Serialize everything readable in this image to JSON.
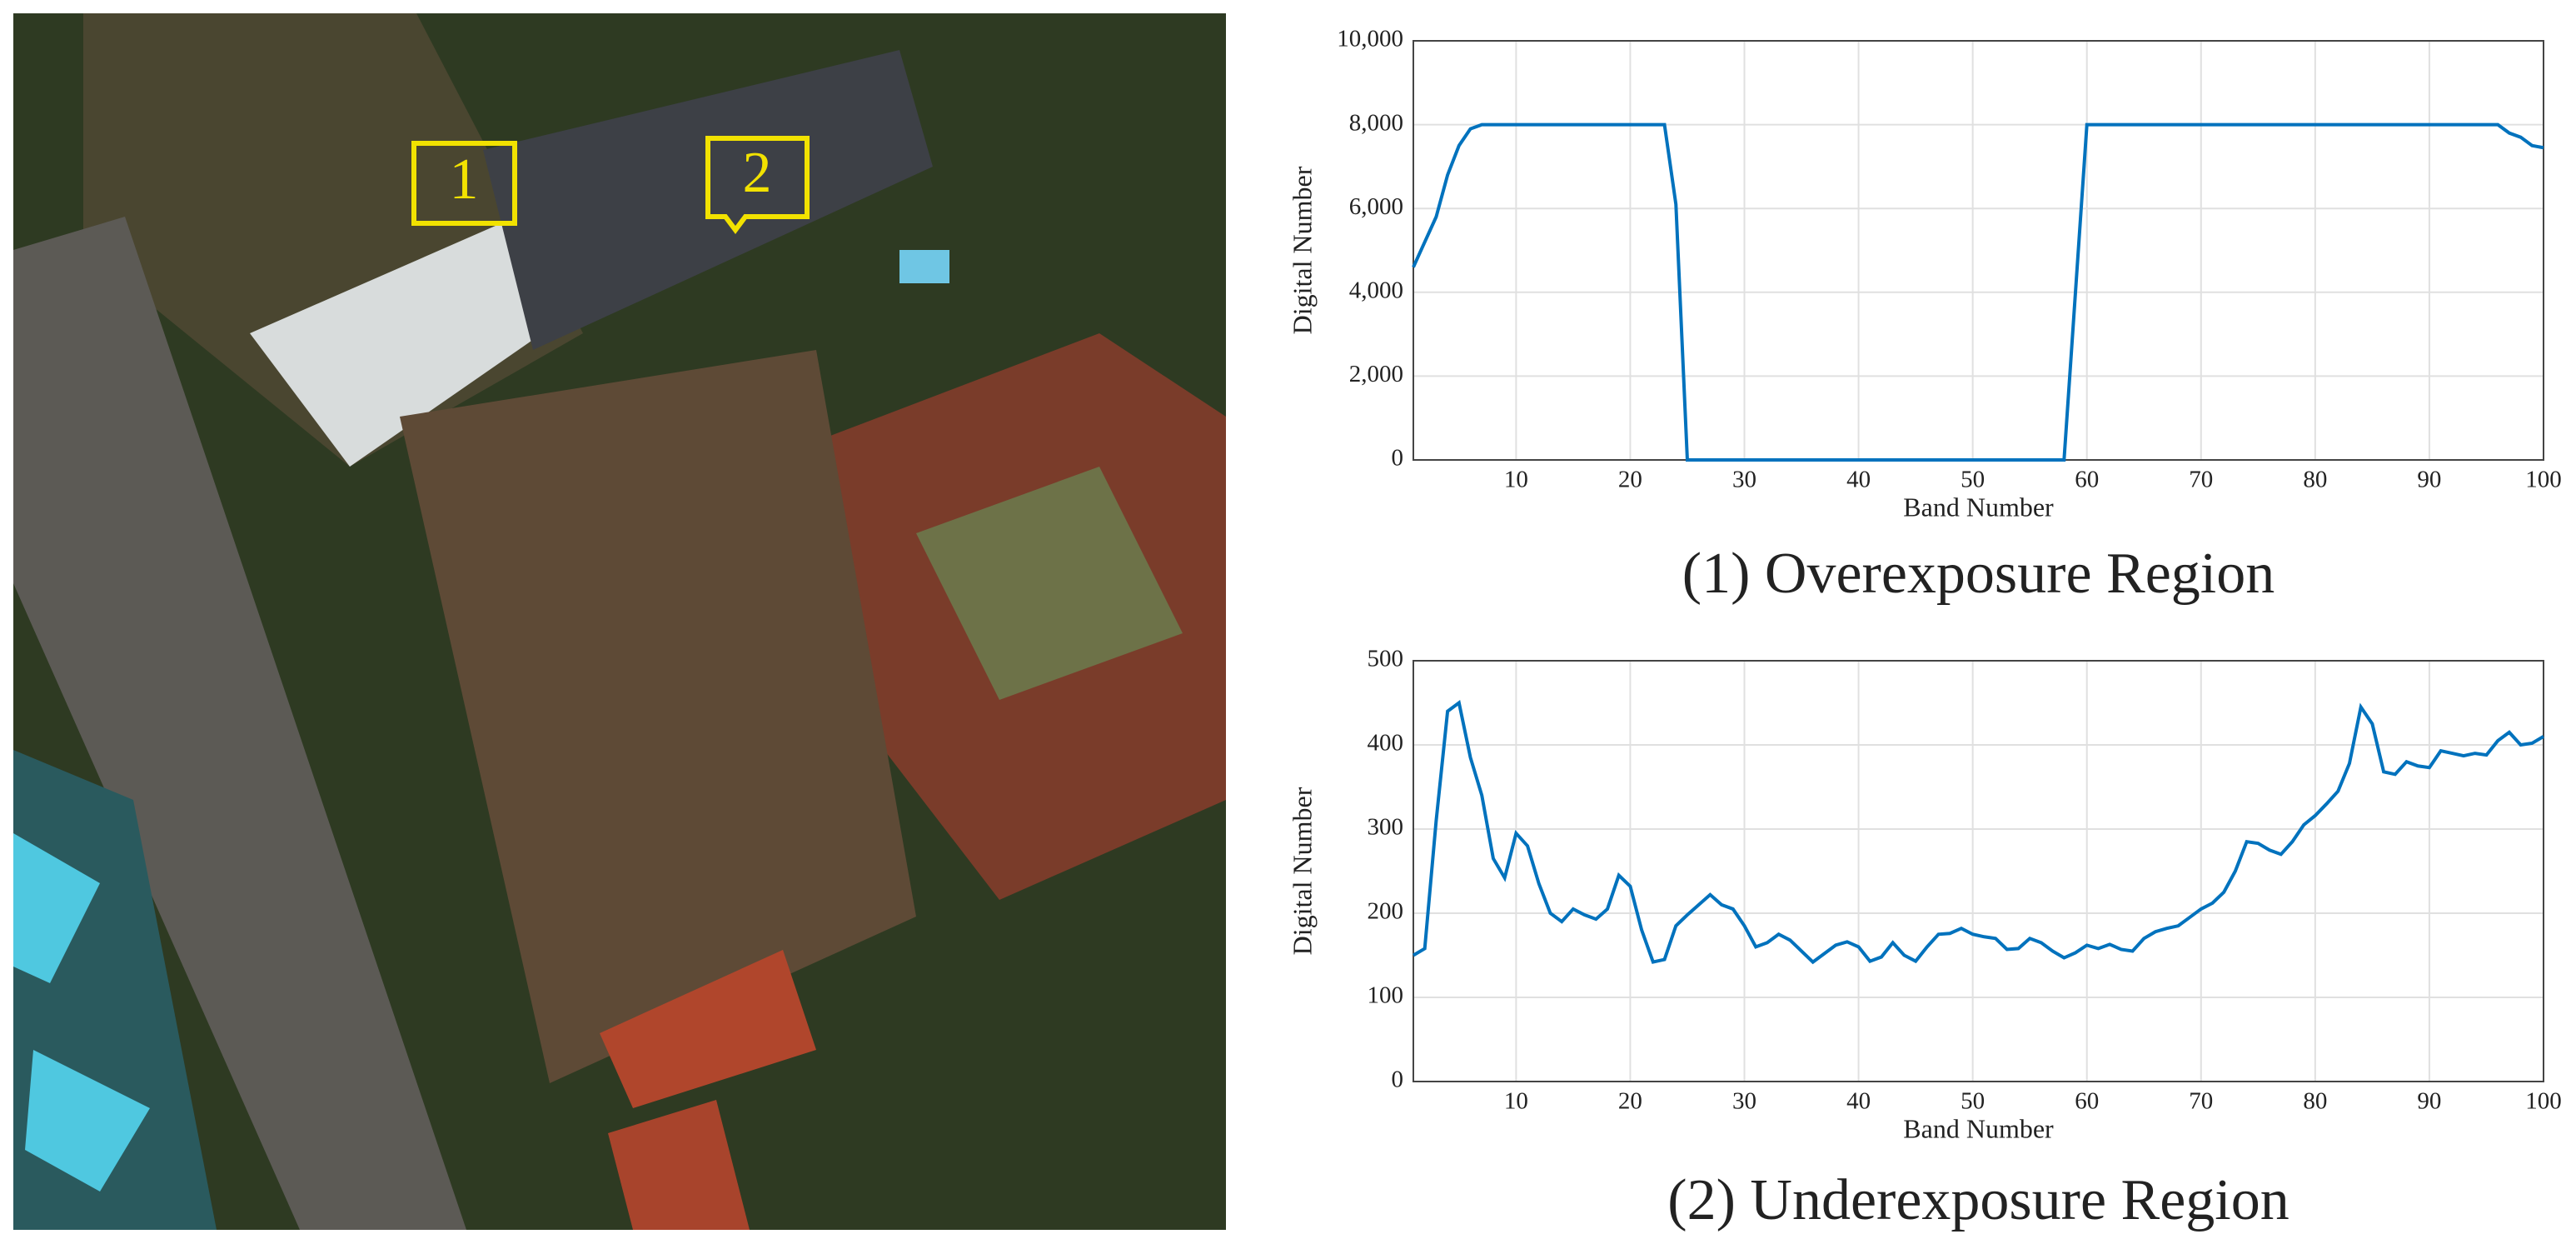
{
  "photo": {
    "markers": [
      "1",
      "2"
    ]
  },
  "chart_data": [
    {
      "type": "line",
      "caption": "(1) Overexposure Region",
      "xlabel": "Band Number",
      "ylabel": "Digital Number",
      "x": [
        1,
        2,
        3,
        4,
        5,
        6,
        7,
        8,
        9,
        10,
        11,
        12,
        13,
        14,
        15,
        16,
        17,
        18,
        19,
        20,
        21,
        22,
        23,
        24,
        25,
        26,
        27,
        28,
        29,
        30,
        31,
        32,
        33,
        34,
        35,
        36,
        37,
        38,
        39,
        40,
        41,
        42,
        43,
        44,
        45,
        46,
        47,
        48,
        49,
        50,
        51,
        52,
        53,
        54,
        55,
        56,
        57,
        58,
        59,
        60,
        61,
        62,
        63,
        64,
        65,
        66,
        67,
        68,
        69,
        70,
        71,
        72,
        73,
        74,
        75,
        76,
        77,
        78,
        79,
        80,
        81,
        82,
        83,
        84,
        85,
        86,
        87,
        88,
        89,
        90,
        91,
        92,
        93,
        94,
        95,
        96,
        97,
        98,
        99,
        100
      ],
      "values": [
        4600,
        5200,
        5800,
        6800,
        7500,
        7900,
        8000,
        8000,
        8000,
        8000,
        8000,
        8000,
        8000,
        8000,
        8000,
        8000,
        8000,
        8000,
        8000,
        8000,
        8000,
        8000,
        8000,
        6100,
        0,
        0,
        0,
        0,
        0,
        0,
        0,
        0,
        0,
        0,
        0,
        0,
        0,
        0,
        0,
        0,
        0,
        0,
        0,
        0,
        0,
        0,
        0,
        0,
        0,
        0,
        0,
        0,
        0,
        0,
        0,
        0,
        0,
        0,
        4000,
        8000,
        8000,
        8000,
        8000,
        8000,
        8000,
        8000,
        8000,
        8000,
        8000,
        8000,
        8000,
        8000,
        8000,
        8000,
        8000,
        8000,
        8000,
        8000,
        8000,
        8000,
        8000,
        8000,
        8000,
        8000,
        8000,
        8000,
        8000,
        8000,
        8000,
        8000,
        8000,
        8000,
        8000,
        8000,
        8000,
        8000,
        7800,
        7700,
        7500,
        7450
      ],
      "color": "#0072bd",
      "xlim": [
        1,
        100
      ],
      "xticks": [
        10,
        20,
        30,
        40,
        50,
        60,
        70,
        80,
        90,
        100
      ],
      "ylim": [
        0,
        10000
      ],
      "yticks": [
        0,
        {
          "value": 2000,
          "label": "2,000"
        },
        {
          "value": 4000,
          "label": "4,000"
        },
        {
          "value": 6000,
          "label": "6,000"
        },
        {
          "value": 8000,
          "label": "8,000"
        },
        {
          "value": 10000,
          "label": "10,000"
        }
      ],
      "grid": true
    },
    {
      "type": "line",
      "caption": "(2) Underexposure Region",
      "xlabel": "Band Number",
      "ylabel": "Digital Number",
      "x": [
        1,
        2,
        3,
        4,
        5,
        6,
        7,
        8,
        9,
        10,
        11,
        12,
        13,
        14,
        15,
        16,
        17,
        18,
        19,
        20,
        21,
        22,
        23,
        24,
        25,
        26,
        27,
        28,
        29,
        30,
        31,
        32,
        33,
        34,
        35,
        36,
        37,
        38,
        39,
        40,
        41,
        42,
        43,
        44,
        45,
        46,
        47,
        48,
        49,
        50,
        51,
        52,
        53,
        54,
        55,
        56,
        57,
        58,
        59,
        60,
        61,
        62,
        63,
        64,
        65,
        66,
        67,
        68,
        69,
        70,
        71,
        72,
        73,
        74,
        75,
        76,
        77,
        78,
        79,
        80,
        81,
        82,
        83,
        84,
        85,
        86,
        87,
        88,
        89,
        90,
        91,
        92,
        93,
        94,
        95,
        96,
        97,
        98,
        99,
        100
      ],
      "values": [
        150,
        158,
        310,
        440,
        450,
        385,
        340,
        265,
        242,
        295,
        280,
        235,
        200,
        190,
        205,
        198,
        193,
        205,
        245,
        232,
        180,
        142,
        145,
        185,
        198,
        210,
        222,
        210,
        205,
        185,
        160,
        165,
        175,
        168,
        155,
        142,
        152,
        162,
        166,
        160,
        143,
        148,
        165,
        150,
        143,
        160,
        175,
        176,
        182,
        175,
        172,
        170,
        157,
        158,
        170,
        165,
        155,
        147,
        153,
        162,
        158,
        163,
        157,
        155,
        170,
        178,
        182,
        185,
        195,
        205,
        212,
        225,
        250,
        285,
        283,
        275,
        270,
        285,
        305,
        316,
        330,
        345,
        378,
        445,
        425,
        368,
        365,
        380,
        375,
        373,
        393,
        390,
        387,
        390,
        388,
        405,
        415,
        400,
        402,
        410
      ],
      "color": "#0072bd",
      "xlim": [
        1,
        100
      ],
      "xticks": [
        10,
        20,
        30,
        40,
        50,
        60,
        70,
        80,
        90,
        100
      ],
      "ylim": [
        0,
        500
      ],
      "yticks": [
        0,
        100,
        200,
        300,
        400,
        500
      ],
      "grid": true
    }
  ]
}
